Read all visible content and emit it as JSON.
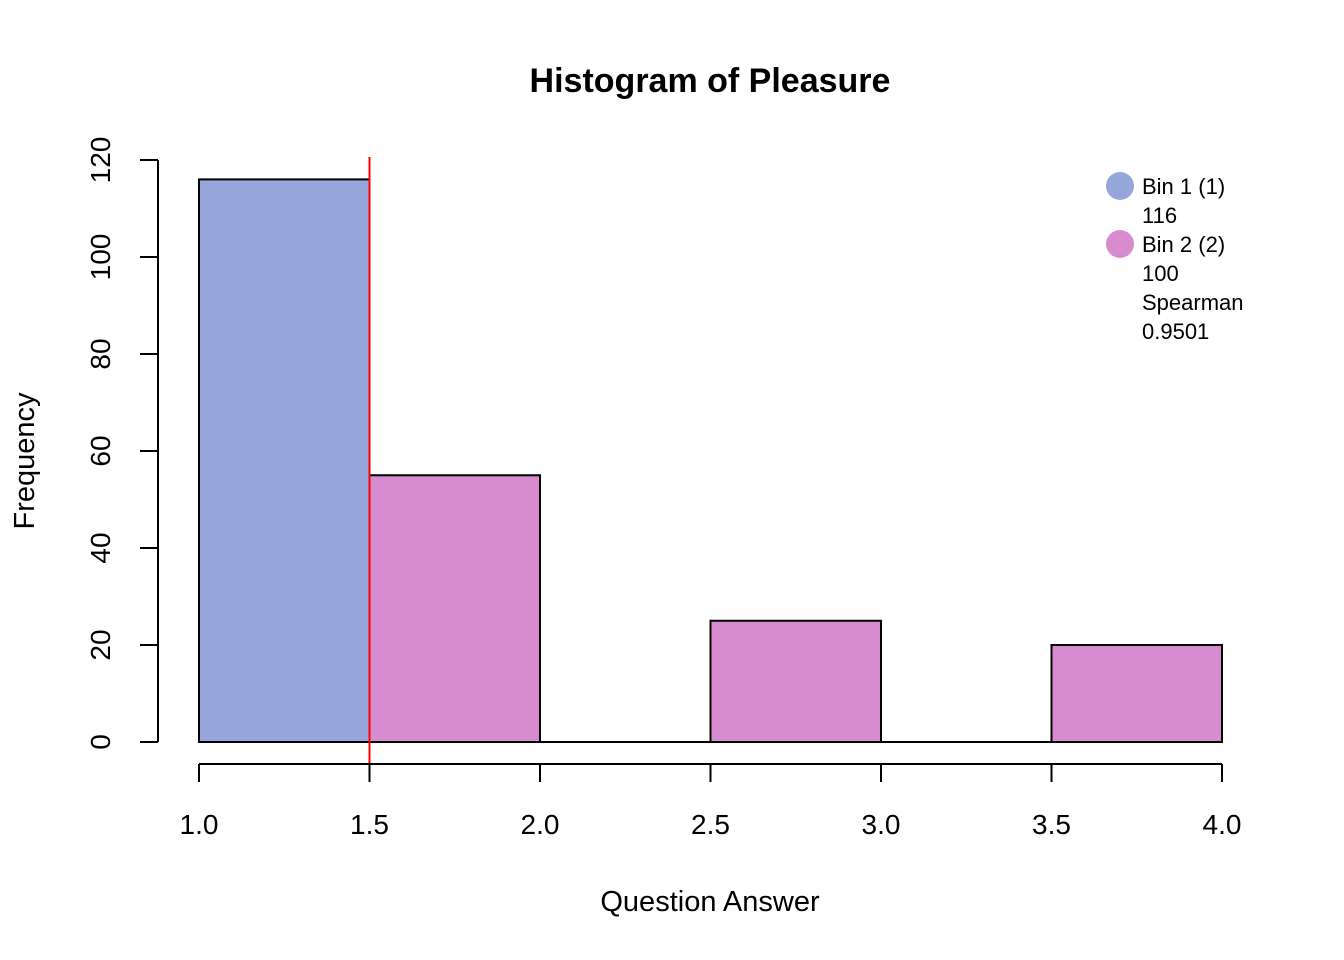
{
  "chart_data": {
    "type": "bar",
    "title": "Histogram of Pleasure",
    "xlabel": "Question Answer",
    "ylabel": "Frequency",
    "xlim": [
      1.0,
      4.0
    ],
    "ylim": [
      0,
      120
    ],
    "x_ticks": [
      "1.0",
      "1.5",
      "2.0",
      "2.5",
      "3.0",
      "3.5",
      "4.0"
    ],
    "y_ticks": [
      "0",
      "20",
      "40",
      "60",
      "80",
      "100",
      "120"
    ],
    "bins": [
      {
        "from": 1.0,
        "to": 1.5,
        "value": 116,
        "group": "Bin 1 (1)"
      },
      {
        "from": 1.5,
        "to": 2.0,
        "value": 55,
        "group": "Bin 2 (2)"
      },
      {
        "from": 2.0,
        "to": 2.5,
        "value": 0,
        "group": "Bin 2 (2)"
      },
      {
        "from": 2.5,
        "to": 3.0,
        "value": 25,
        "group": "Bin 2 (2)"
      },
      {
        "from": 3.0,
        "to": 3.5,
        "value": 0,
        "group": "Bin 2 (2)"
      },
      {
        "from": 3.5,
        "to": 4.0,
        "value": 20,
        "group": "Bin 2 (2)"
      }
    ],
    "cutoff_line": {
      "x": 1.5,
      "color": "#ff0000"
    },
    "colors": {
      "Bin 1 (1)": "#96a6db",
      "Bin 2 (2)": "#d78ccf"
    },
    "legend": {
      "placement": "top-right",
      "entries": [
        {
          "label": "Bin 1 (1)",
          "value": "116",
          "color": "#96a6db"
        },
        {
          "label": "Bin 2 (2)",
          "value": "100",
          "color": "#d78ccf"
        }
      ],
      "stat_label": "Spearman",
      "stat_value": "0.9501"
    },
    "grid": false
  }
}
